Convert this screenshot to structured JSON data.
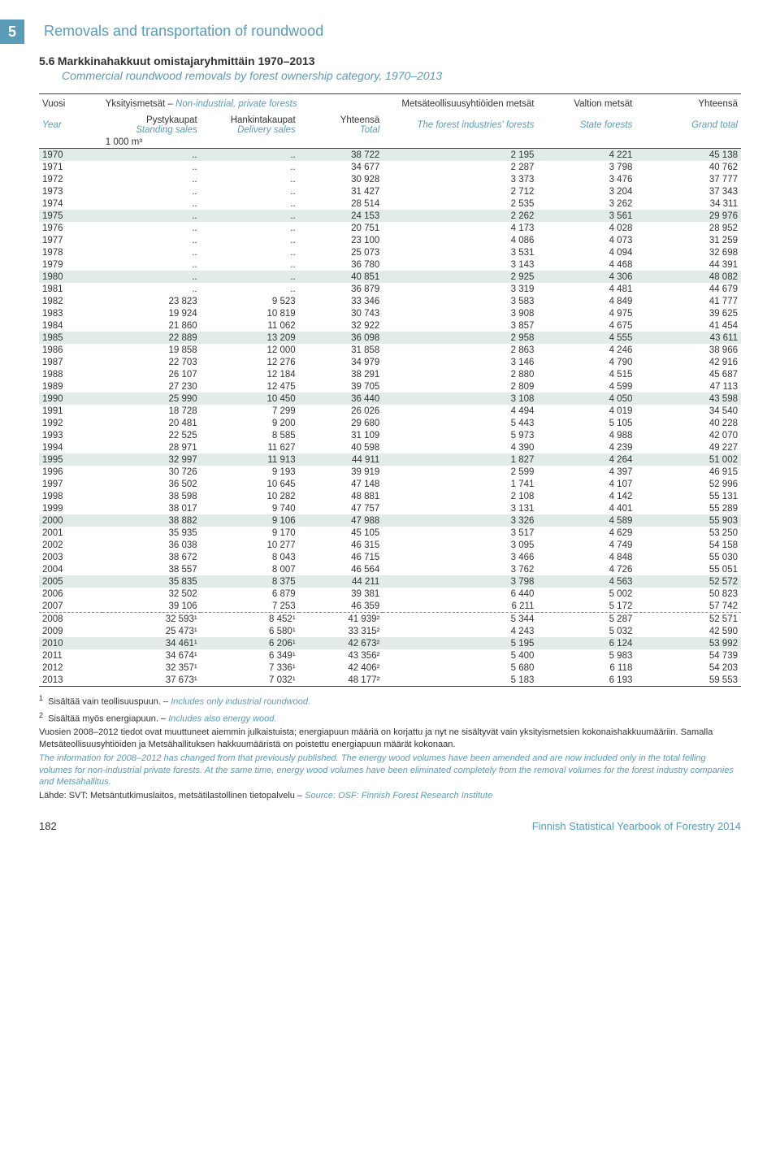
{
  "chapter": {
    "num": "5",
    "title": "Removals and transportation of roundwood"
  },
  "section": {
    "num": "5.6",
    "title_fi": "Markkinahakkuut omistajaryhmittäin 1970–2013",
    "title_en": "Commercial roundwood removals by forest ownership category, 1970–2013"
  },
  "header": {
    "vuosi": "Vuosi",
    "year": "Year",
    "yksityis_fi": "Yksityismetsät – ",
    "yksityis_en": "Non-industrial, private forests",
    "pysty_fi": "Pystykaupat",
    "pysty_en": "Standing sales",
    "hankinta_fi": "Hankintakaupat",
    "hankinta_en": "Delivery sales",
    "yhteensa_fi": "Yhteensä",
    "yhteensa_en": "Total",
    "metsa_fi": "Metsäteollisuusyhtiöiden metsät",
    "metsa_en": "The forest industries' forests",
    "valtion_fi": "Valtion metsät",
    "valtion_en": "State forests",
    "yht_fi": "Yhteensä",
    "yht_en": "Grand total",
    "unit": "1 000 m³"
  },
  "rows": [
    {
      "y": "1970",
      "a": "..",
      "b": "..",
      "c": "38 722",
      "d": "2 195",
      "e": "4 221",
      "f": "45 138",
      "hl": 1
    },
    {
      "y": "1971",
      "a": "..",
      "b": "..",
      "c": "34 677",
      "d": "2 287",
      "e": "3 798",
      "f": "40 762"
    },
    {
      "y": "1972",
      "a": "..",
      "b": "..",
      "c": "30 928",
      "d": "3 373",
      "e": "3 476",
      "f": "37 777"
    },
    {
      "y": "1973",
      "a": "..",
      "b": "..",
      "c": "31 427",
      "d": "2 712",
      "e": "3 204",
      "f": "37 343"
    },
    {
      "y": "1974",
      "a": "..",
      "b": "..",
      "c": "28 514",
      "d": "2 535",
      "e": "3 262",
      "f": "34 311"
    },
    {
      "y": "1975",
      "a": "..",
      "b": "..",
      "c": "24 153",
      "d": "2 262",
      "e": "3 561",
      "f": "29 976",
      "hl": 1
    },
    {
      "y": "1976",
      "a": "..",
      "b": "..",
      "c": "20 751",
      "d": "4 173",
      "e": "4 028",
      "f": "28 952"
    },
    {
      "y": "1977",
      "a": "..",
      "b": "..",
      "c": "23 100",
      "d": "4 086",
      "e": "4 073",
      "f": "31 259"
    },
    {
      "y": "1978",
      "a": "..",
      "b": "..",
      "c": "25 073",
      "d": "3 531",
      "e": "4 094",
      "f": "32 698"
    },
    {
      "y": "1979",
      "a": "..",
      "b": "..",
      "c": "36 780",
      "d": "3 143",
      "e": "4 468",
      "f": "44 391"
    },
    {
      "y": "1980",
      "a": "..",
      "b": "..",
      "c": "40 851",
      "d": "2 925",
      "e": "4 306",
      "f": "48 082",
      "hl": 1
    },
    {
      "y": "1981",
      "a": "..",
      "b": "..",
      "c": "36 879",
      "d": "3 319",
      "e": "4 481",
      "f": "44 679"
    },
    {
      "y": "1982",
      "a": "23 823",
      "b": "9 523",
      "c": "33 346",
      "d": "3 583",
      "e": "4 849",
      "f": "41 777"
    },
    {
      "y": "1983",
      "a": "19 924",
      "b": "10 819",
      "c": "30 743",
      "d": "3 908",
      "e": "4 975",
      "f": "39 625"
    },
    {
      "y": "1984",
      "a": "21 860",
      "b": "11 062",
      "c": "32 922",
      "d": "3 857",
      "e": "4 675",
      "f": "41 454"
    },
    {
      "y": "1985",
      "a": "22 889",
      "b": "13 209",
      "c": "36 098",
      "d": "2 958",
      "e": "4 555",
      "f": "43 611",
      "hl": 1
    },
    {
      "y": "1986",
      "a": "19 858",
      "b": "12 000",
      "c": "31 858",
      "d": "2 863",
      "e": "4 246",
      "f": "38 966"
    },
    {
      "y": "1987",
      "a": "22 703",
      "b": "12 276",
      "c": "34 979",
      "d": "3 146",
      "e": "4 790",
      "f": "42 916"
    },
    {
      "y": "1988",
      "a": "26 107",
      "b": "12 184",
      "c": "38 291",
      "d": "2 880",
      "e": "4 515",
      "f": "45 687"
    },
    {
      "y": "1989",
      "a": "27 230",
      "b": "12 475",
      "c": "39 705",
      "d": "2 809",
      "e": "4 599",
      "f": "47 113"
    },
    {
      "y": "1990",
      "a": "25 990",
      "b": "10 450",
      "c": "36 440",
      "d": "3 108",
      "e": "4 050",
      "f": "43 598",
      "hl": 1
    },
    {
      "y": "1991",
      "a": "18 728",
      "b": "7 299",
      "c": "26 026",
      "d": "4 494",
      "e": "4 019",
      "f": "34 540"
    },
    {
      "y": "1992",
      "a": "20 481",
      "b": "9 200",
      "c": "29 680",
      "d": "5 443",
      "e": "5 105",
      "f": "40 228"
    },
    {
      "y": "1993",
      "a": "22 525",
      "b": "8 585",
      "c": "31 109",
      "d": "5 973",
      "e": "4 988",
      "f": "42 070"
    },
    {
      "y": "1994",
      "a": "28 971",
      "b": "11 627",
      "c": "40 598",
      "d": "4 390",
      "e": "4 239",
      "f": "49 227"
    },
    {
      "y": "1995",
      "a": "32 997",
      "b": "11 913",
      "c": "44 911",
      "d": "1 827",
      "e": "4 264",
      "f": "51 002",
      "hl": 1
    },
    {
      "y": "1996",
      "a": "30 726",
      "b": "9 193",
      "c": "39 919",
      "d": "2 599",
      "e": "4 397",
      "f": "46 915"
    },
    {
      "y": "1997",
      "a": "36 502",
      "b": "10 645",
      "c": "47 148",
      "d": "1 741",
      "e": "4 107",
      "f": "52 996"
    },
    {
      "y": "1998",
      "a": "38 598",
      "b": "10 282",
      "c": "48 881",
      "d": "2 108",
      "e": "4 142",
      "f": "55 131"
    },
    {
      "y": "1999",
      "a": "38 017",
      "b": "9 740",
      "c": "47 757",
      "d": "3 131",
      "e": "4 401",
      "f": "55 289"
    },
    {
      "y": "2000",
      "a": "38 882",
      "b": "9 106",
      "c": "47 988",
      "d": "3 326",
      "e": "4 589",
      "f": "55 903",
      "hl": 1
    },
    {
      "y": "2001",
      "a": "35 935",
      "b": "9 170",
      "c": "45 105",
      "d": "3 517",
      "e": "4 629",
      "f": "53 250"
    },
    {
      "y": "2002",
      "a": "36 038",
      "b": "10 277",
      "c": "46 315",
      "d": "3 095",
      "e": "4 749",
      "f": "54 158"
    },
    {
      "y": "2003",
      "a": "38 672",
      "b": "8 043",
      "c": "46 715",
      "d": "3 466",
      "e": "4 848",
      "f": "55 030"
    },
    {
      "y": "2004",
      "a": "38 557",
      "b": "8 007",
      "c": "46 564",
      "d": "3 762",
      "e": "4 726",
      "f": "55 051"
    },
    {
      "y": "2005",
      "a": "35 835",
      "b": "8 375",
      "c": "44 211",
      "d": "3 798",
      "e": "4 563",
      "f": "52 572",
      "hl": 1
    },
    {
      "y": "2006",
      "a": "32 502",
      "b": "6 879",
      "c": "39 381",
      "d": "6 440",
      "e": "5 002",
      "f": "50 823"
    },
    {
      "y": "2007",
      "a": "39 106",
      "b": "7 253",
      "c": "46 359",
      "d": "6 211",
      "e": "5 172",
      "f": "57 742",
      "dash": 1
    },
    {
      "y": "2008",
      "a": "32 593¹",
      "b": "8 452¹",
      "c": "41 939²",
      "d": "5 344",
      "e": "5 287",
      "f": "52 571"
    },
    {
      "y": "2009",
      "a": "25 473¹",
      "b": "6 580¹",
      "c": "33 315²",
      "d": "4 243",
      "e": "5 032",
      "f": "42 590"
    },
    {
      "y": "2010",
      "a": "34 461¹",
      "b": "6 206¹",
      "c": "42 673²",
      "d": "5 195",
      "e": "6 124",
      "f": "53 992",
      "hl": 1
    },
    {
      "y": "2011",
      "a": "34 674¹",
      "b": "6 349¹",
      "c": "43 356²",
      "d": "5 400",
      "e": "5 983",
      "f": "54 739"
    },
    {
      "y": "2012",
      "a": "32 357¹",
      "b": "7 336¹",
      "c": "42 406²",
      "d": "5 680",
      "e": "6 118",
      "f": "54 203"
    },
    {
      "y": "2013",
      "a": "37 673¹",
      "b": "7 032¹",
      "c": "48 177²",
      "d": "5 183",
      "e": "6 193",
      "f": "59 553"
    }
  ],
  "footnotes": {
    "f1_fi": "Sisältää vain teollisuuspuun. – ",
    "f1_en": "Includes only industrial roundwood.",
    "f2_fi": "Sisältää myös energiapuun. – ",
    "f2_en": "Includes also energy wood.",
    "p1_fi": "Vuosien 2008–2012 tiedot ovat muuttuneet aiemmin julkaistuista; energiapuun määriä on korjattu ja nyt ne sisältyvät vain yksityismetsien kokonaishakkuumääriin. Samalla Metsäteollisuusyhtiöiden ja Metsähallituksen hakkuumääristä on poistettu energiapuun määrät kokonaan.",
    "p1_en": "The information for 2008–2012 has changed from that previously published. The energy wood volumes have been amended and are now included only in the total felling volumes for non-industrial private forests. At the same time, energy wood volumes have been eliminated completely from the removal volumes for the forest industry companies and Metsähallitus.",
    "source_fi": "Lähde: SVT: Metsäntutkimuslaitos, metsätilastollinen tietopalvelu – ",
    "source_en": "Source: OSF: Finnish Forest Research Institute"
  },
  "footer": {
    "page": "182",
    "pub": "Finnish Statistical Yearbook of Forestry 2014"
  }
}
